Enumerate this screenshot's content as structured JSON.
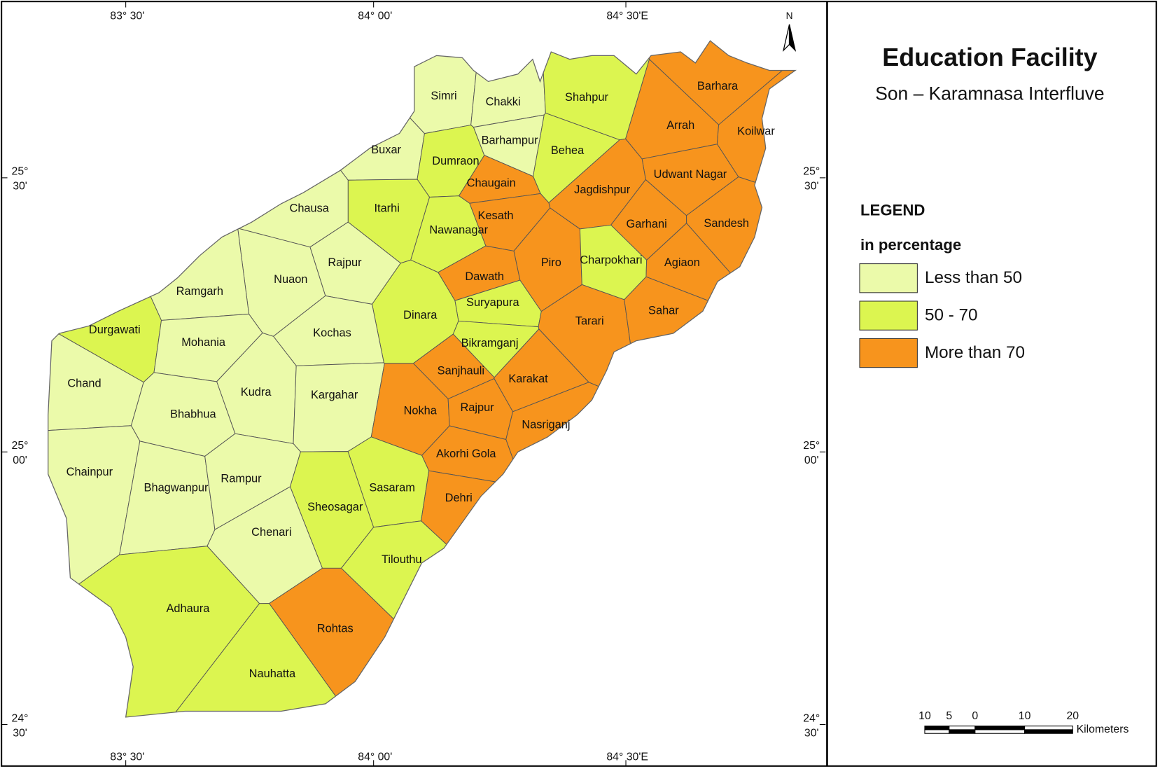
{
  "title": "Education Facility",
  "subtitle": "Son – Karamnasa Interfluve",
  "legend": {
    "title": "LEGEND",
    "subtitle": "in percentage",
    "items": [
      {
        "label": "Less than 50",
        "color": "#ebfaaa"
      },
      {
        "label": "50 - 70",
        "color": "#dcf550"
      },
      {
        "label": "More than 70",
        "color": "#f7941d"
      }
    ]
  },
  "north": "N",
  "longitudes": [
    "83° 30'",
    "84° 00'",
    "84° 30'E"
  ],
  "latitudes": [
    {
      "deg": "25°",
      "min": "30'"
    },
    {
      "deg": "25°",
      "min": "00'"
    },
    {
      "deg": "24°",
      "min": "30'"
    }
  ],
  "scale": {
    "marks": [
      "10",
      "5",
      "0",
      "10",
      "20"
    ],
    "unit": "Kilometers"
  },
  "blocks": [
    {
      "name": "Simri",
      "class": "Less than 50"
    },
    {
      "name": "Chakki",
      "class": "Less than 50"
    },
    {
      "name": "Shahpur",
      "class": "50 - 70"
    },
    {
      "name": "Barhara",
      "class": "More than 70"
    },
    {
      "name": "Arrah",
      "class": "More than 70"
    },
    {
      "name": "Koilwar",
      "class": "More than 70"
    },
    {
      "name": "Buxar",
      "class": "Less than 50"
    },
    {
      "name": "Dumraon",
      "class": "50 - 70"
    },
    {
      "name": "Barhampur",
      "class": "Less than 50"
    },
    {
      "name": "Behea",
      "class": "50 - 70"
    },
    {
      "name": "Udwant Nagar",
      "class": "More than 70"
    },
    {
      "name": "Jagdishpur",
      "class": "More than 70"
    },
    {
      "name": "Chaugain",
      "class": "More than 70"
    },
    {
      "name": "Itarhi",
      "class": "50 - 70"
    },
    {
      "name": "Chausa",
      "class": "Less than 50"
    },
    {
      "name": "Kesath",
      "class": "More than 70"
    },
    {
      "name": "Nawanagar",
      "class": "50 - 70"
    },
    {
      "name": "Garhani",
      "class": "More than 70"
    },
    {
      "name": "Sandesh",
      "class": "More than 70"
    },
    {
      "name": "Rajpur",
      "class": "Less than 50"
    },
    {
      "name": "Piro",
      "class": "More than 70"
    },
    {
      "name": "Charpokhari",
      "class": "50 - 70"
    },
    {
      "name": "Agiaon",
      "class": "More than 70"
    },
    {
      "name": "Nuaon",
      "class": "Less than 50"
    },
    {
      "name": "Ramgarh",
      "class": "Less than 50"
    },
    {
      "name": "Dawath",
      "class": "More than 70"
    },
    {
      "name": "Suryapura",
      "class": "50 - 70"
    },
    {
      "name": "Dinara",
      "class": "50 - 70"
    },
    {
      "name": "Tarari",
      "class": "More than 70"
    },
    {
      "name": "Sahar",
      "class": "More than 70"
    },
    {
      "name": "Durgawati",
      "class": "50 - 70"
    },
    {
      "name": "Mohania",
      "class": "Less than 50"
    },
    {
      "name": "Kochas",
      "class": "Less than 50"
    },
    {
      "name": "Bikramganj",
      "class": "50 - 70"
    },
    {
      "name": "Sanjhauli",
      "class": "More than 70"
    },
    {
      "name": "Karakat",
      "class": "More than 70"
    },
    {
      "name": "Chand",
      "class": "Less than 50"
    },
    {
      "name": "Kudra",
      "class": "Less than 50"
    },
    {
      "name": "Kargahar",
      "class": "Less than 50"
    },
    {
      "name": "Bhabhua",
      "class": "Less than 50"
    },
    {
      "name": "Nokha",
      "class": "More than 70"
    },
    {
      "name": "Rajpur",
      "class": "More than 70"
    },
    {
      "name": "Nasriganj",
      "class": "More than 70"
    },
    {
      "name": "Akorhi Gola",
      "class": "More than 70"
    },
    {
      "name": "Chainpur",
      "class": "Less than 50"
    },
    {
      "name": "Bhagwanpur",
      "class": "Less than 50"
    },
    {
      "name": "Rampur",
      "class": "Less than 50"
    },
    {
      "name": "Sasaram",
      "class": "50 - 70"
    },
    {
      "name": "Sheosagar",
      "class": "50 - 70"
    },
    {
      "name": "Dehri",
      "class": "More than 70"
    },
    {
      "name": "Chenari",
      "class": "Less than 50"
    },
    {
      "name": "Tilouthu",
      "class": "50 - 70"
    },
    {
      "name": "Adhaura",
      "class": "50 - 70"
    },
    {
      "name": "Rohtas",
      "class": "More than 70"
    },
    {
      "name": "Nauhatta",
      "class": "50 - 70"
    }
  ]
}
